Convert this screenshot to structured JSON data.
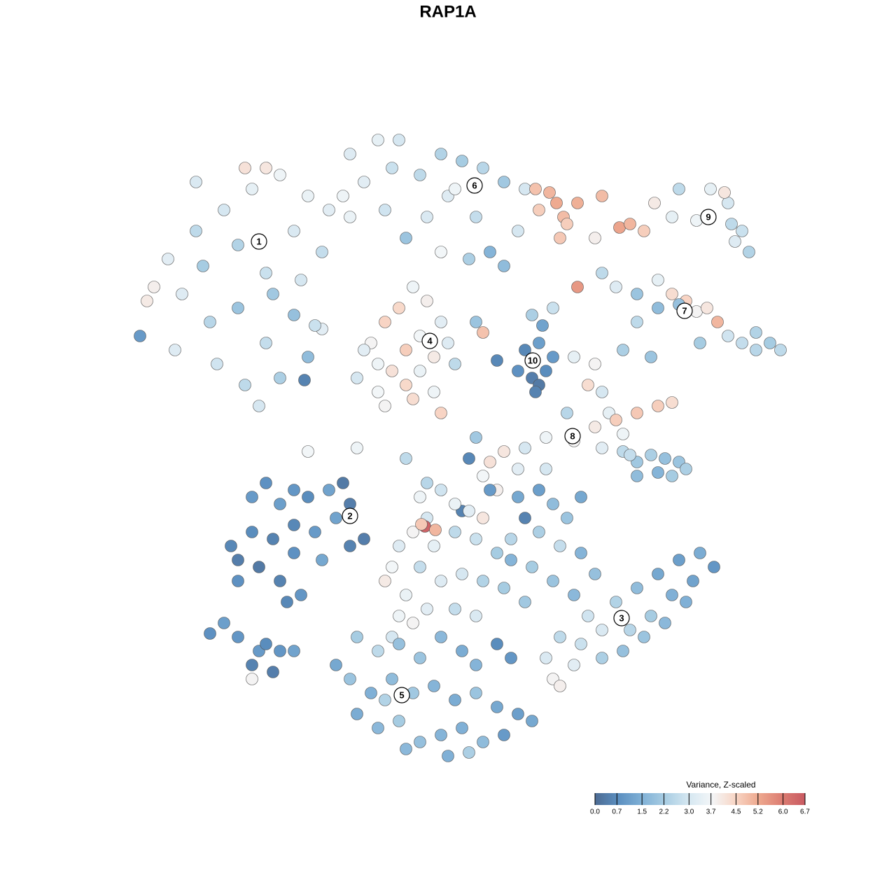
{
  "chart_data": {
    "type": "scatter",
    "title": "RAP1A",
    "xlim": [
      -64,
      64
    ],
    "ylim": [
      -64,
      64
    ],
    "series": [
      {
        "x": [
          -40,
          -36,
          -32,
          -28,
          -24,
          -30,
          -26,
          -22,
          -20,
          -38,
          -34,
          -30,
          -26,
          -22,
          -33,
          -29,
          -27,
          -24,
          -20,
          -42,
          -43,
          -36,
          -29,
          -26,
          -18,
          -17,
          -35,
          -25,
          -21,
          -39
        ],
        "y": [
          27,
          31,
          34,
          37,
          39,
          29,
          25,
          31,
          36,
          22,
          18,
          20,
          15,
          19,
          12,
          9,
          6,
          10,
          13,
          23,
          21,
          38,
          40,
          40,
          28,
          34,
          26,
          22,
          24,
          14
        ],
        "values": [
          3.3,
          2.6,
          3.0,
          3.4,
          3.6,
          2.4,
          2.8,
          3.1,
          3.5,
          3.2,
          2.5,
          2.0,
          2.7,
          1.9,
          2.9,
          2.6,
          3.0,
          2.3,
          1.8,
          3.9,
          4.0,
          3.1,
          4.2,
          4.1,
          2.7,
          3.3,
          2.2,
          2.1,
          3.0,
          3.2
        ]
      },
      {
        "x": [
          -14,
          -10,
          -7,
          -12,
          -8,
          -4,
          -1,
          2,
          5,
          8,
          11,
          0,
          4,
          -3,
          -9,
          -14,
          -6,
          6,
          8,
          3,
          -1,
          10,
          -15,
          1
        ],
        "y": [
          42,
          44,
          44,
          38,
          40,
          39,
          42,
          41,
          40,
          38,
          37,
          36,
          33,
          33,
          34,
          33,
          30,
          28,
          26,
          27,
          28,
          31,
          36,
          37
        ],
        "values": [
          3.2,
          3.4,
          3.0,
          3.3,
          2.8,
          2.6,
          2.4,
          2.2,
          2.5,
          2.1,
          3.0,
          3.2,
          2.7,
          3.1,
          2.9,
          3.5,
          2.0,
          1.6,
          1.8,
          2.3,
          3.7,
          3.0,
          3.6,
          3.6
        ]
      },
      {
        "x": [
          12.5,
          14.5,
          15.5,
          13,
          16.5,
          18.5,
          17,
          22,
          16,
          21
        ],
        "y": [
          37,
          36.5,
          35,
          34,
          33,
          35,
          32,
          36,
          30,
          30
        ],
        "values": [
          4.8,
          5.0,
          5.2,
          4.6,
          4.9,
          5.1,
          4.6,
          4.9,
          4.7,
          3.9
        ]
      },
      {
        "x": [
          24.5,
          26,
          28,
          29.5,
          32,
          33,
          35.5,
          37,
          37.5,
          40,
          40.5,
          42,
          43,
          41,
          39.5
        ],
        "y": [
          31.5,
          32,
          31,
          35,
          33,
          37,
          32.5,
          33,
          37,
          35,
          32,
          31,
          28,
          29.5,
          36.5
        ],
        "values": [
          5.3,
          5.0,
          4.6,
          4.0,
          3.4,
          2.6,
          3.6,
          2.4,
          3.4,
          3.0,
          2.6,
          2.8,
          2.4,
          3.2,
          4.1
        ]
      },
      {
        "x": [
          22,
          24,
          27,
          30,
          32,
          34,
          35.5,
          37,
          38.5,
          40,
          42,
          44,
          46,
          47.5,
          44,
          36,
          30,
          27,
          25,
          29,
          33,
          18.5,
          15,
          12,
          5,
          4
        ],
        "y": [
          25,
          23,
          22,
          24,
          22,
          21,
          19.5,
          20,
          18,
          16,
          15,
          14,
          15,
          14,
          16.5,
          15,
          20,
          18,
          14,
          13,
          20.5,
          23,
          20,
          19,
          16.5,
          18
        ],
        "values": [
          2.6,
          3.2,
          2.0,
          3.4,
          4.3,
          4.5,
          3.8,
          4.1,
          5.0,
          2.9,
          2.7,
          2.5,
          2.2,
          2.6,
          2.4,
          2.2,
          1.8,
          2.6,
          2.3,
          2.0,
          1.9,
          5.5,
          2.8,
          2.3,
          4.8,
          2.0
        ]
      },
      {
        "x": [
          -11,
          -9,
          -7,
          -5,
          -3,
          -1,
          0,
          -2,
          -4,
          -6,
          -8,
          -10,
          -12,
          -6,
          -4,
          -9,
          -5,
          -2,
          -13,
          -1,
          1,
          -10
        ],
        "y": [
          15,
          18,
          20,
          23,
          21,
          18,
          15,
          13,
          11,
          9,
          11,
          12,
          14,
          14,
          16,
          6,
          7,
          8,
          10,
          5,
          12,
          8
        ],
        "values": [
          3.8,
          4.5,
          4.4,
          3.6,
          3.9,
          3.3,
          3.2,
          4.0,
          3.5,
          4.4,
          4.2,
          3.6,
          3.3,
          4.6,
          3.7,
          3.8,
          4.3,
          3.6,
          3.0,
          4.5,
          2.6,
          3.7
        ]
      },
      {
        "x": [
          12,
          11,
          13,
          14,
          12,
          10,
          13,
          12.5,
          15,
          13.5,
          7
        ],
        "y": [
          12.5,
          14,
          15,
          11,
          10,
          11,
          9,
          8,
          13,
          17.5,
          12.5
        ],
        "values": [
          0.9,
          0.6,
          1.1,
          0.7,
          0.4,
          0.8,
          0.3,
          0.5,
          1.0,
          1.2,
          0.6
        ]
      },
      {
        "x": [
          18,
          21,
          20,
          22,
          23,
          21,
          24,
          27,
          30,
          32,
          25,
          22,
          18,
          14,
          11,
          8,
          6,
          10,
          14,
          5,
          7,
          25,
          27,
          29,
          31,
          33,
          34,
          27,
          30,
          32,
          26,
          17,
          2,
          3,
          4
        ],
        "y": [
          13,
          12,
          9,
          8,
          5,
          3,
          4,
          5,
          6,
          6.5,
          2,
          0,
          1,
          1.5,
          0,
          -0.5,
          -2,
          -3,
          -3,
          -4,
          -6,
          -0.5,
          -2,
          -1,
          -1.5,
          -2,
          -3,
          -4,
          -3.5,
          -4,
          -1,
          5,
          -9,
          -1.5,
          1.5
        ],
        "values": [
          3.4,
          3.8,
          4.3,
          3.0,
          3.4,
          4.0,
          4.6,
          4.7,
          4.6,
          4.3,
          3.6,
          3.3,
          3.8,
          3.6,
          3.0,
          4.1,
          4.2,
          3.3,
          3.0,
          3.7,
          3.9,
          2.6,
          2.1,
          2.3,
          1.9,
          2.0,
          2.3,
          1.8,
          1.6,
          2.2,
          2.7,
          2.5,
          0.5,
          0.6,
          2.1
        ]
      },
      {
        "x": [
          -28,
          -26,
          -24,
          -22,
          -20,
          -17,
          -15,
          -14,
          -16,
          -19,
          -22,
          -25,
          -28,
          -30,
          -27,
          -24,
          -22,
          -30,
          -23,
          -12,
          -14,
          -18,
          -21,
          -31
        ],
        "y": [
          -7,
          -5,
          -8,
          -6,
          -7,
          -6,
          -5,
          -8,
          -10,
          -12,
          -11,
          -13,
          -12,
          -16,
          -17,
          -19,
          -15,
          -19,
          -22,
          -13,
          -14,
          -16,
          -21,
          -14
        ],
        "values": [
          1.0,
          0.8,
          1.1,
          0.9,
          0.7,
          1.2,
          0.3,
          0.4,
          1.2,
          1.0,
          0.6,
          0.5,
          0.7,
          0.4,
          0.3,
          0.5,
          0.8,
          0.8,
          0.6,
          0.4,
          0.5,
          1.3,
          0.9,
          0.6
        ]
      },
      {
        "x": [
          -3,
          -1,
          1,
          3,
          5,
          -3,
          -5,
          -2,
          1,
          4,
          7,
          9,
          -7,
          -8,
          -4,
          -1,
          2,
          5,
          8,
          -6,
          -9,
          -3,
          1,
          4,
          -7,
          -3.3,
          -1.8,
          -3.8,
          -4,
          6,
          10,
          11,
          13,
          -8,
          -5
        ],
        "y": [
          -5,
          -6,
          -8,
          -9,
          -10,
          -10,
          -12,
          -14,
          -12,
          -13,
          -15,
          -13,
          -14,
          -17,
          -17,
          -19,
          -18,
          -19,
          -20,
          -21,
          -19,
          -23,
          -23,
          -24,
          -24,
          -11.2,
          -11.7,
          -10.9,
          -7,
          -6,
          -7,
          -10,
          -6,
          -27,
          -25
        ],
        "values": [
          2.5,
          2.9,
          3.5,
          3.3,
          4.1,
          3.0,
          3.8,
          3.4,
          2.6,
          2.8,
          2.2,
          2.5,
          3.2,
          3.7,
          2.7,
          3.2,
          3.0,
          2.4,
          2.2,
          3.5,
          4.0,
          3.3,
          2.7,
          3.1,
          3.6,
          6.5,
          5.0,
          4.7,
          3.6,
          1.0,
          1.3,
          0.5,
          1.1,
          3.0,
          3.8
        ]
      },
      {
        "x": [
          15,
          17,
          19,
          13,
          16,
          19,
          12,
          15,
          18,
          21,
          24,
          27,
          30,
          33,
          36,
          38,
          35,
          32,
          29,
          26,
          22,
          19,
          16,
          14,
          18,
          22,
          25,
          28,
          31,
          34,
          15,
          16,
          20,
          11,
          9
        ],
        "y": [
          -8,
          -10,
          -7,
          -12,
          -14,
          -15,
          -17,
          -19,
          -21,
          -18,
          -22,
          -20,
          -18,
          -16,
          -15,
          -17,
          -19,
          -21,
          -24,
          -26,
          -26,
          -28,
          -27,
          -30,
          -31,
          -30,
          -29,
          -27,
          -25,
          -22,
          -33,
          -34,
          -24,
          -22,
          -16
        ],
        "values": [
          1.8,
          2.0,
          1.3,
          2.3,
          2.7,
          1.6,
          2.2,
          2.0,
          1.7,
          1.9,
          2.4,
          1.8,
          1.3,
          1.1,
          1.4,
          0.9,
          1.2,
          1.5,
          2.2,
          2.5,
          3.1,
          2.8,
          2.6,
          3.1,
          3.3,
          2.3,
          1.9,
          2.0,
          1.7,
          1.5,
          3.8,
          3.9,
          2.9,
          2.1,
          1.6
        ]
      },
      {
        "x": [
          -13,
          -10,
          -7,
          -4,
          -1,
          2,
          4,
          -14,
          -11,
          -8,
          -5,
          -2,
          1,
          4,
          7,
          10,
          12,
          -13,
          -10,
          -7,
          -4,
          -1,
          2,
          5,
          8,
          -6,
          0,
          3,
          -9,
          -16,
          7,
          9
        ],
        "y": [
          -27,
          -29,
          -28,
          -30,
          -27,
          -29,
          -31,
          -33,
          -35,
          -33,
          -35,
          -34,
          -36,
          -35,
          -37,
          -38,
          -39,
          -38,
          -40,
          -39,
          -42,
          -41,
          -40,
          -42,
          -41,
          -43,
          -44,
          -43.5,
          -36,
          -31,
          -28,
          -30
        ],
        "values": [
          2.2,
          2.6,
          1.9,
          2.0,
          1.7,
          1.4,
          1.6,
          2.0,
          1.5,
          1.8,
          2.1,
          1.6,
          1.4,
          2.0,
          1.3,
          1.1,
          1.3,
          1.4,
          1.7,
          2.2,
          1.9,
          1.6,
          1.5,
          1.8,
          1.0,
          1.7,
          1.5,
          2.3,
          2.4,
          1.3,
          0.7,
          0.9
        ]
      },
      {
        "x": [
          -34,
          -32,
          -30,
          -27,
          -28,
          -26,
          -24,
          -22,
          -25,
          -28
        ],
        "y": [
          -26.5,
          -25,
          -27,
          -29,
          -31,
          -28,
          -29,
          -29,
          -32,
          -33
        ],
        "values": [
          0.8,
          1.1,
          0.9,
          1.0,
          0.5,
          0.7,
          0.9,
          1.2,
          0.4,
          3.8
        ]
      },
      {
        "x": [
          -20,
          -13,
          -6,
          -18,
          -20.5,
          -44,
          -19
        ],
        "y": [
          -0.5,
          0,
          -1.5,
          17,
          9.7,
          16,
          17.5
        ],
        "values": [
          3.7,
          3.6,
          2.6,
          3.3,
          0.5,
          1.0,
          2.8
        ]
      }
    ],
    "clusters": {
      "labels": [
        1,
        2,
        3,
        4,
        5,
        6,
        7,
        8,
        9,
        10
      ],
      "x": [
        -27,
        -14,
        24.8,
        -2.6,
        -6.6,
        3.8,
        33.8,
        17.8,
        37.2,
        12.1
      ],
      "y": [
        29.5,
        -9.7,
        -24.3,
        15.3,
        -35.3,
        37.5,
        19.6,
        1.7,
        33,
        12.5
      ]
    },
    "colorbar": {
      "title": "Variance, Z-scaled",
      "clim": [
        0,
        6.7
      ],
      "ticks": [
        {
          "value": 0,
          "label": "0.0"
        },
        0.7,
        1.5,
        2.2,
        {
          "value": 3,
          "label": "3.0"
        },
        3.7,
        4.5,
        5.2,
        {
          "value": 6,
          "label": "6.0"
        },
        6.7
      ],
      "colors": [
        "#4d6b93",
        "#5b8fc0",
        "#7fb0d6",
        "#a8cde3",
        "#d5e7f1",
        "#f3f6f8",
        "#f8d6c6",
        "#eea98f",
        "#dc7d72",
        "#c95a62"
      ]
    }
  }
}
